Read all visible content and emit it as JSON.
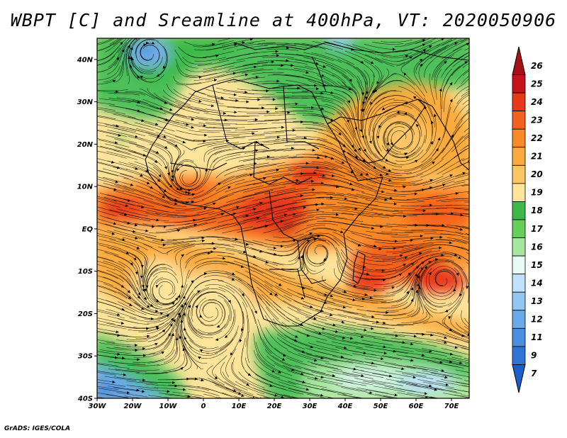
{
  "title": "WBPT [C] and Sreamline at 400hPa, VT: 2020050906",
  "credit": "GrADS: IGES/COLA",
  "map": {
    "region": "Africa and surrounding oceans",
    "lon_range": [
      -30,
      75
    ],
    "lat_range": [
      -40,
      45
    ]
  },
  "axes": {
    "lat_ticks": [
      {
        "label": "40N",
        "lat": 40
      },
      {
        "label": "30N",
        "lat": 30
      },
      {
        "label": "20N",
        "lat": 20
      },
      {
        "label": "10N",
        "lat": 10
      },
      {
        "label": "EQ",
        "lat": 0
      },
      {
        "label": "10S",
        "lat": -10
      },
      {
        "label": "20S",
        "lat": -20
      },
      {
        "label": "30S",
        "lat": -30
      },
      {
        "label": "40S",
        "lat": -40
      }
    ],
    "lon_ticks": [
      {
        "label": "30W",
        "lon": -30
      },
      {
        "label": "20W",
        "lon": -20
      },
      {
        "label": "10W",
        "lon": -10
      },
      {
        "label": "0",
        "lon": 0
      },
      {
        "label": "10E",
        "lon": 10
      },
      {
        "label": "20E",
        "lon": 20
      },
      {
        "label": "30E",
        "lon": 30
      },
      {
        "label": "40E",
        "lon": 40
      },
      {
        "label": "50E",
        "lon": 50
      },
      {
        "label": "60E",
        "lon": 60
      },
      {
        "label": "70E",
        "lon": 70
      }
    ]
  },
  "colorbar": {
    "levels": [
      {
        "label": "26",
        "color": "#a50f15"
      },
      {
        "label": "25",
        "color": "#c8131b"
      },
      {
        "label": "24",
        "color": "#e8391b"
      },
      {
        "label": "23",
        "color": "#f5621f"
      },
      {
        "label": "22",
        "color": "#f98a26"
      },
      {
        "label": "21",
        "color": "#fbaa3e"
      },
      {
        "label": "20",
        "color": "#fcc665"
      },
      {
        "label": "19",
        "color": "#fde49a"
      },
      {
        "label": "18",
        "color": "#3db94a"
      },
      {
        "label": "17",
        "color": "#66cf5a"
      },
      {
        "label": "16",
        "color": "#a7e6a0"
      },
      {
        "label": "15",
        "color": "#e8fbf5"
      },
      {
        "label": "14",
        "color": "#bfe2fb"
      },
      {
        "label": "13",
        "color": "#93c7f3"
      },
      {
        "label": "12",
        "color": "#6aa9ea"
      },
      {
        "label": "11",
        "color": "#4a8fe0"
      },
      {
        "label": "9",
        "color": "#2f74d6"
      },
      {
        "label": "7",
        "color": "#1a5fcc"
      }
    ]
  },
  "colors": {
    "frame": "#000000",
    "streamline": "#000000",
    "background": "#ffffff"
  }
}
